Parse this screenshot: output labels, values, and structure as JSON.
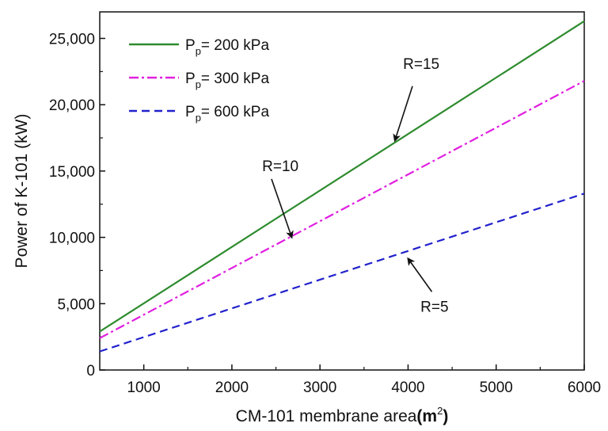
{
  "chart_data": {
    "type": "line",
    "xlabel": "CM-101 membrane area",
    "xlabel_unit": "(m",
    "xlabel_unit_sup": "2",
    "xlabel_unit_close": ")",
    "ylabel": "Power of K-101 (kW)",
    "xlim": [
      500,
      6000
    ],
    "ylim": [
      0,
      27000
    ],
    "x_ticks": [
      1000,
      2000,
      3000,
      4000,
      5000,
      6000
    ],
    "x_tick_labels": [
      "1000",
      "2000",
      "3000",
      "4000",
      "5000",
      "6000"
    ],
    "y_ticks": [
      0,
      5000,
      10000,
      15000,
      20000,
      25000
    ],
    "y_tick_labels": [
      "0",
      "5,000",
      "10,000",
      "15,000",
      "20,000",
      "25,000"
    ],
    "grid": false,
    "legend_position": "top-left",
    "series": [
      {
        "name_main": "P",
        "name_sub": "p",
        "name_rest": "= 200 kPa",
        "color": "#2e8b2e",
        "dash": "solid",
        "x": [
          500,
          6000
        ],
        "y": [
          2900,
          26300
        ]
      },
      {
        "name_main": "P",
        "name_sub": "p",
        "name_rest": "= 300 kPa",
        "color": "#e020e0",
        "dash": "dashdot",
        "x": [
          500,
          6000
        ],
        "y": [
          2400,
          21800
        ]
      },
      {
        "name_main": "P",
        "name_sub": "p",
        "name_rest": "= 600 kPa",
        "color": "#2222cc",
        "dash": "dashed",
        "x": [
          500,
          6000
        ],
        "y": [
          1400,
          13300
        ]
      }
    ],
    "annotations": [
      {
        "text": "R=15",
        "text_x": 4150,
        "text_y": 22700,
        "arrow_from": [
          4050,
          21400
        ],
        "arrow_to": [
          3850,
          17300
        ]
      },
      {
        "text": "R=10",
        "text_x": 2550,
        "text_y": 15000,
        "arrow_from": [
          2450,
          14400
        ],
        "arrow_to": [
          2680,
          10000
        ]
      },
      {
        "text": "R=5",
        "text_x": 4300,
        "text_y": 4400,
        "arrow_from": [
          4270,
          5900
        ],
        "arrow_to": [
          4000,
          8400
        ]
      }
    ]
  }
}
